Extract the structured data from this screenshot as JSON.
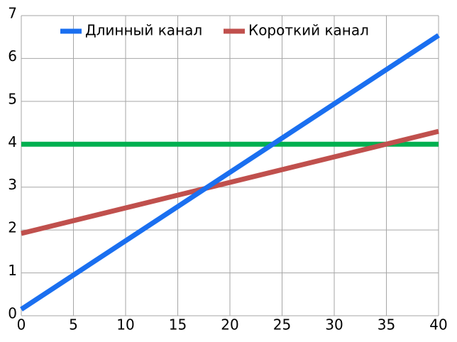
{
  "chart_data": {
    "type": "line",
    "x": [
      0,
      40
    ],
    "series": [
      {
        "name": "Длинный канал",
        "color": "#1a6ff0",
        "values": [
          0.15,
          6.54
        ]
      },
      {
        "name": "Короткий канал",
        "color": "#c0504d",
        "values": [
          1.92,
          4.3
        ]
      },
      {
        "color": "#00b050",
        "values": [
          4,
          4
        ]
      }
    ],
    "xlim": [
      0,
      40
    ],
    "xticks": [
      0,
      5,
      10,
      15,
      20,
      25,
      30,
      35,
      40
    ],
    "ylim": [
      0,
      7
    ],
    "yticks": [
      0,
      1,
      2,
      3,
      4,
      5,
      6,
      7
    ],
    "grid": true,
    "legend": "top"
  }
}
